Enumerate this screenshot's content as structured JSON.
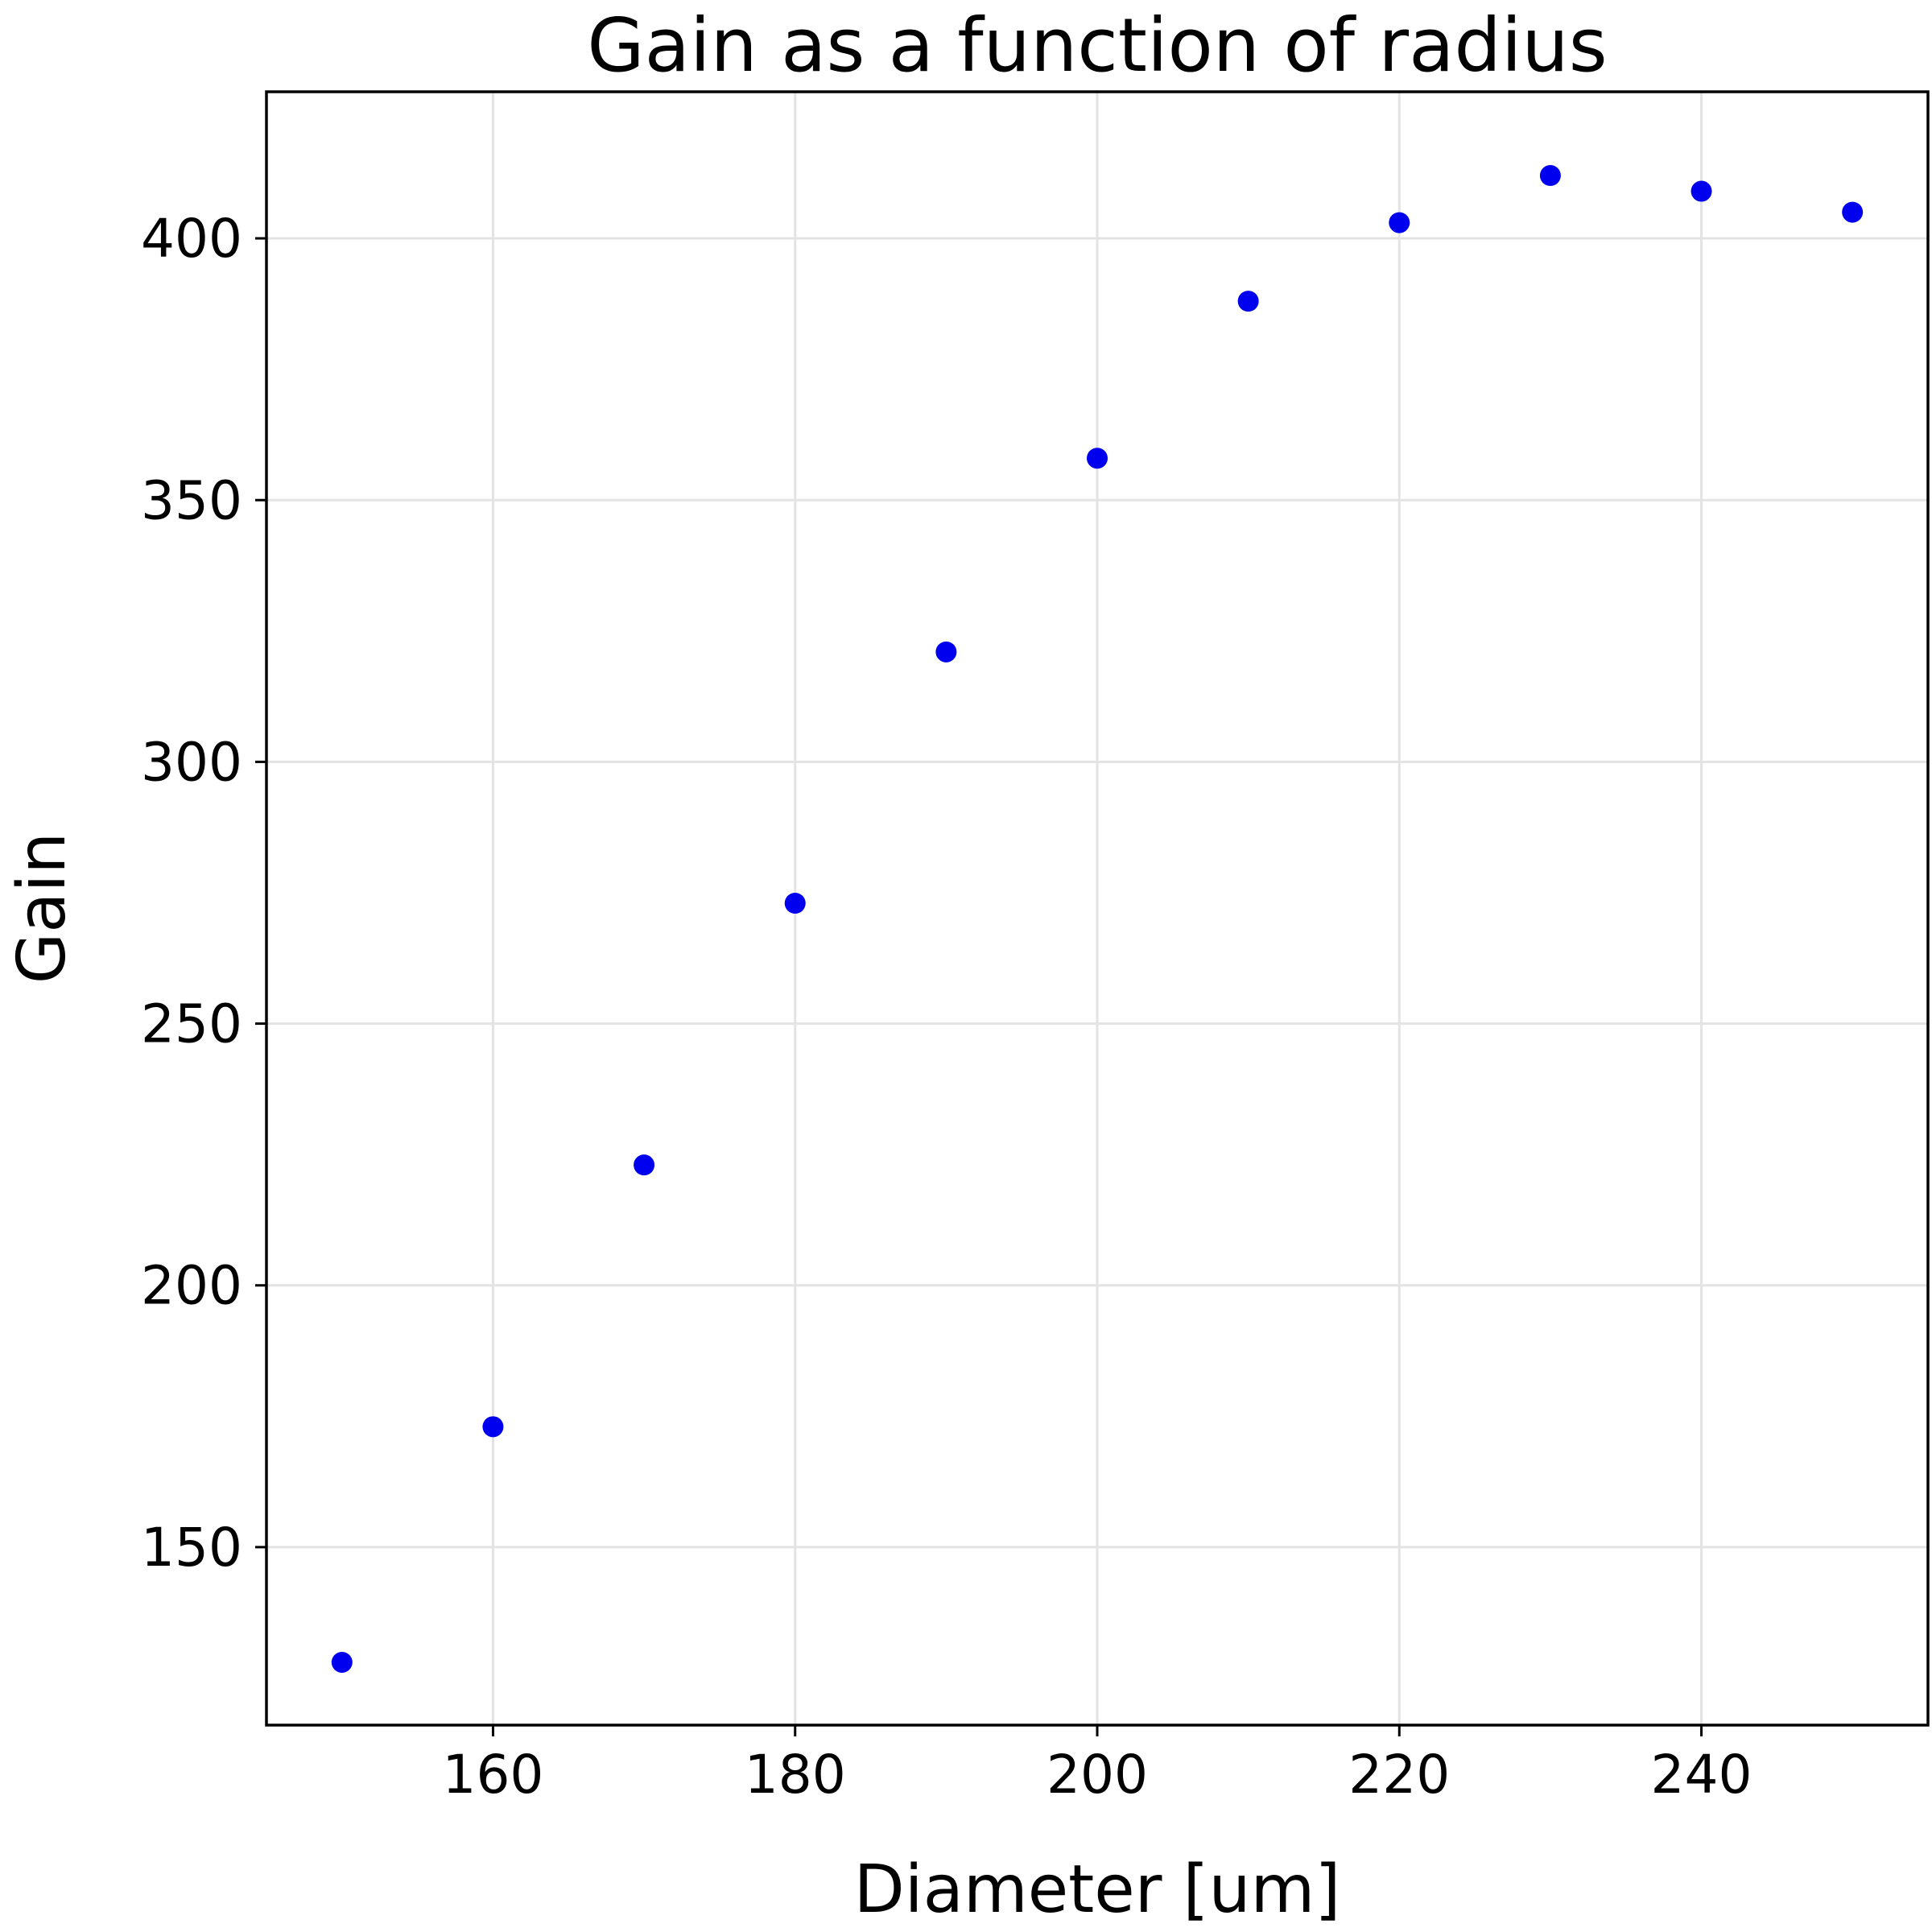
{
  "chart_data": {
    "type": "scatter",
    "title": "Gain as a function of radius",
    "xlabel": "Diameter [um]",
    "ylabel": "Gain",
    "xlim": [
      145,
      255
    ],
    "ylim": [
      116,
      428
    ],
    "xticks": [
      160,
      180,
      200,
      220,
      240
    ],
    "yticks": [
      150,
      200,
      250,
      300,
      350,
      400
    ],
    "grid": true,
    "marker_color": "#0000ee",
    "series": [
      {
        "points": [
          {
            "x": 150,
            "y": 128
          },
          {
            "x": 160,
            "y": 173
          },
          {
            "x": 170,
            "y": 223
          },
          {
            "x": 180,
            "y": 273
          },
          {
            "x": 190,
            "y": 321
          },
          {
            "x": 200,
            "y": 358
          },
          {
            "x": 210,
            "y": 388
          },
          {
            "x": 220,
            "y": 403
          },
          {
            "x": 230,
            "y": 412
          },
          {
            "x": 240,
            "y": 409
          },
          {
            "x": 250,
            "y": 405
          }
        ]
      }
    ]
  }
}
